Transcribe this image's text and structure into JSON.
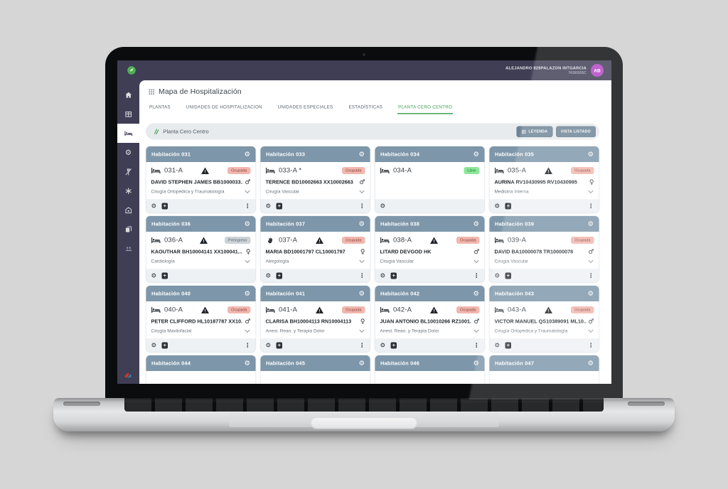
{
  "header": {
    "user_name": "ALEJANDRO 828PALAZON INTGARCIA",
    "user_id": "74366955C",
    "avatar": "AB"
  },
  "page_title": "Mapa de Hospitalización",
  "tabs": [
    {
      "label": "PLANTAS",
      "active": false
    },
    {
      "label": "UNIDADES DE HOSPITALIZACION",
      "active": false
    },
    {
      "label": "UNIDADES ESPECIALES",
      "active": false
    },
    {
      "label": "ESTADÍSTICAS",
      "active": false
    },
    {
      "label": "PLANTA CERO CENTRO",
      "active": true
    }
  ],
  "section": {
    "title": "Planta Cero Centro",
    "legend_button": "LEYENDA",
    "list_view_button": "VISTA LISTADO"
  },
  "sidebar": {
    "items": [
      {
        "name": "home",
        "active": false
      },
      {
        "name": "modules",
        "active": false
      },
      {
        "name": "bed",
        "active": true
      },
      {
        "name": "settings",
        "active": false
      },
      {
        "name": "diet-restriction",
        "active": false
      },
      {
        "name": "asterisk",
        "active": false
      },
      {
        "name": "home-care",
        "active": false
      },
      {
        "name": "library",
        "active": false
      },
      {
        "name": "users",
        "active": false,
        "dim": true
      }
    ]
  },
  "icons": {
    "gear": "⚙",
    "kebab": "⋮",
    "add": "+",
    "male": "♂",
    "female": "♀",
    "warning": "css-triangle",
    "chevron_down": "css-chevron"
  },
  "badges": {
    "ocupada": {
      "label": "Ocupada",
      "bg": "#f1b7ae",
      "fg": "#8a4138"
    },
    "libre": {
      "label": "Libre",
      "bg": "#8de79b",
      "fg": "#1d7a33"
    },
    "preingreso": {
      "label": "Preingreso",
      "bg": "#ccd3d9",
      "fg": "#59626a"
    }
  },
  "colors": {
    "navy": "#3f3e54",
    "accent_green": "#3ca254",
    "card_header": "#7d96a9",
    "button_slate": "#6d8496",
    "avatar": "#b543c8"
  },
  "rooms": [
    {
      "title": "Habitación 031",
      "bed_label": "031-A",
      "bed_icon": "bed",
      "warning": true,
      "status": "ocupada",
      "patient": "DAVID STEPHEN JAMES BB1000033...",
      "gender": "male",
      "specialty": "Cirugía Ortopédica y Traumatología",
      "actions": {
        "settings": true,
        "add": true,
        "menu": true
      },
      "stub": false
    },
    {
      "title": "Habitación 033",
      "bed_label": "033-A *",
      "bed_icon": "bed",
      "warning": false,
      "status": "ocupada",
      "patient": "TERENCE BD10002663 XX10002663",
      "gender": "male",
      "specialty": "Cirugía Vascular",
      "actions": {
        "settings": true,
        "add": true,
        "menu": true
      },
      "stub": false
    },
    {
      "title": "Habitación 034",
      "bed_label": "034-A",
      "bed_icon": "bed",
      "warning": false,
      "status": "libre",
      "patient": null,
      "gender": null,
      "specialty": null,
      "actions": {
        "settings": true,
        "add": false,
        "menu": false
      },
      "stub": false
    },
    {
      "title": "Habitación 035",
      "bed_label": "035-A",
      "bed_icon": "bed",
      "warning": true,
      "status": "ocupada",
      "patient": "AURINA RV10430995 RV10430995",
      "gender": "female",
      "specialty": "Medicina Interna",
      "actions": {
        "settings": true,
        "add": true,
        "menu": true
      },
      "stub": false
    },
    {
      "title": "Habitación 036",
      "bed_label": "036-A",
      "bed_icon": "bed",
      "warning": true,
      "status": "preingreso",
      "patient": "KAOUTHAR BH10004141 XX100041...",
      "gender": "female",
      "specialty": "Cardiología",
      "actions": {
        "settings": true,
        "add": true,
        "menu": false
      },
      "stub": false
    },
    {
      "title": "Habitación 037",
      "bed_label": "037-A",
      "bed_icon": "hand",
      "warning": true,
      "status": "ocupada",
      "patient": "MARIA BD10001797 CL10001797",
      "gender": "female",
      "specialty": "Alergología",
      "actions": {
        "settings": true,
        "add": true,
        "menu": true
      },
      "stub": false
    },
    {
      "title": "Habitación 038",
      "bed_label": "038-A",
      "bed_icon": "bed",
      "warning": true,
      "status": "ocupada",
      "patient": "LITARD DEVGOD HK",
      "gender": "male",
      "specialty": "Cirugía Vascular",
      "actions": {
        "settings": true,
        "add": true,
        "menu": true
      },
      "stub": false
    },
    {
      "title": "Habitación 039",
      "bed_label": "039-A",
      "bed_icon": "bed",
      "warning": false,
      "status": "ocupada",
      "patient": "DAVID BA10000078 TR10000078",
      "gender": "male",
      "specialty": "Cirugía Vascular",
      "actions": {
        "settings": true,
        "add": true,
        "menu": true
      },
      "stub": false
    },
    {
      "title": "Habitación 040",
      "bed_label": "040-A",
      "bed_icon": "bed",
      "warning": true,
      "status": "ocupada",
      "patient": "PETER CLIFFORD HL10187787 XX10...",
      "gender": "male",
      "specialty": "Cirugía Maxilofacial",
      "actions": {
        "settings": true,
        "add": true,
        "menu": true
      },
      "stub": false
    },
    {
      "title": "Habitación 041",
      "bed_label": "041-A",
      "bed_icon": "bed",
      "warning": true,
      "status": "ocupada",
      "patient": "CLARISA BH10004113 RN10004113",
      "gender": "female",
      "specialty": "Anest. Rean. y Terapia Dolor",
      "actions": {
        "settings": true,
        "add": true,
        "menu": true
      },
      "stub": false
    },
    {
      "title": "Habitación 042",
      "bed_label": "042-A",
      "bed_icon": "bed",
      "warning": true,
      "status": "ocupada",
      "patient": "JUAN ANTONIO BL10010266 RZ1001...",
      "gender": "male",
      "specialty": "Anest. Rean. y Terapia Dolor",
      "actions": {
        "settings": true,
        "add": true,
        "menu": true
      },
      "stub": false
    },
    {
      "title": "Habitación 043",
      "bed_label": "043-A",
      "bed_icon": "bed",
      "warning": true,
      "status": "ocupada",
      "patient": "VICTOR MANUEL QS10389091 ML10...",
      "gender": "male",
      "specialty": "Cirugía Ortopédica y Traumatología",
      "actions": {
        "settings": true,
        "add": true,
        "menu": true
      },
      "stub": false
    },
    {
      "title": "Habitación 044",
      "bed_label": "",
      "bed_icon": "bed",
      "warning": false,
      "status": null,
      "patient": null,
      "gender": null,
      "specialty": null,
      "actions": {
        "settings": true,
        "add": false,
        "menu": false
      },
      "stub": true
    },
    {
      "title": "Habitación 045",
      "bed_label": "",
      "bed_icon": "bed",
      "warning": false,
      "status": null,
      "patient": null,
      "gender": null,
      "specialty": null,
      "actions": {
        "settings": true,
        "add": false,
        "menu": false
      },
      "stub": true
    },
    {
      "title": "Habitación 046",
      "bed_label": "",
      "bed_icon": "bed",
      "warning": false,
      "status": null,
      "patient": null,
      "gender": null,
      "specialty": null,
      "actions": {
        "settings": true,
        "add": false,
        "menu": false
      },
      "stub": true
    },
    {
      "title": "Habitación 047",
      "bed_label": "",
      "bed_icon": "bed",
      "warning": false,
      "status": null,
      "patient": null,
      "gender": null,
      "specialty": null,
      "actions": {
        "settings": true,
        "add": false,
        "menu": false
      },
      "stub": true
    }
  ]
}
